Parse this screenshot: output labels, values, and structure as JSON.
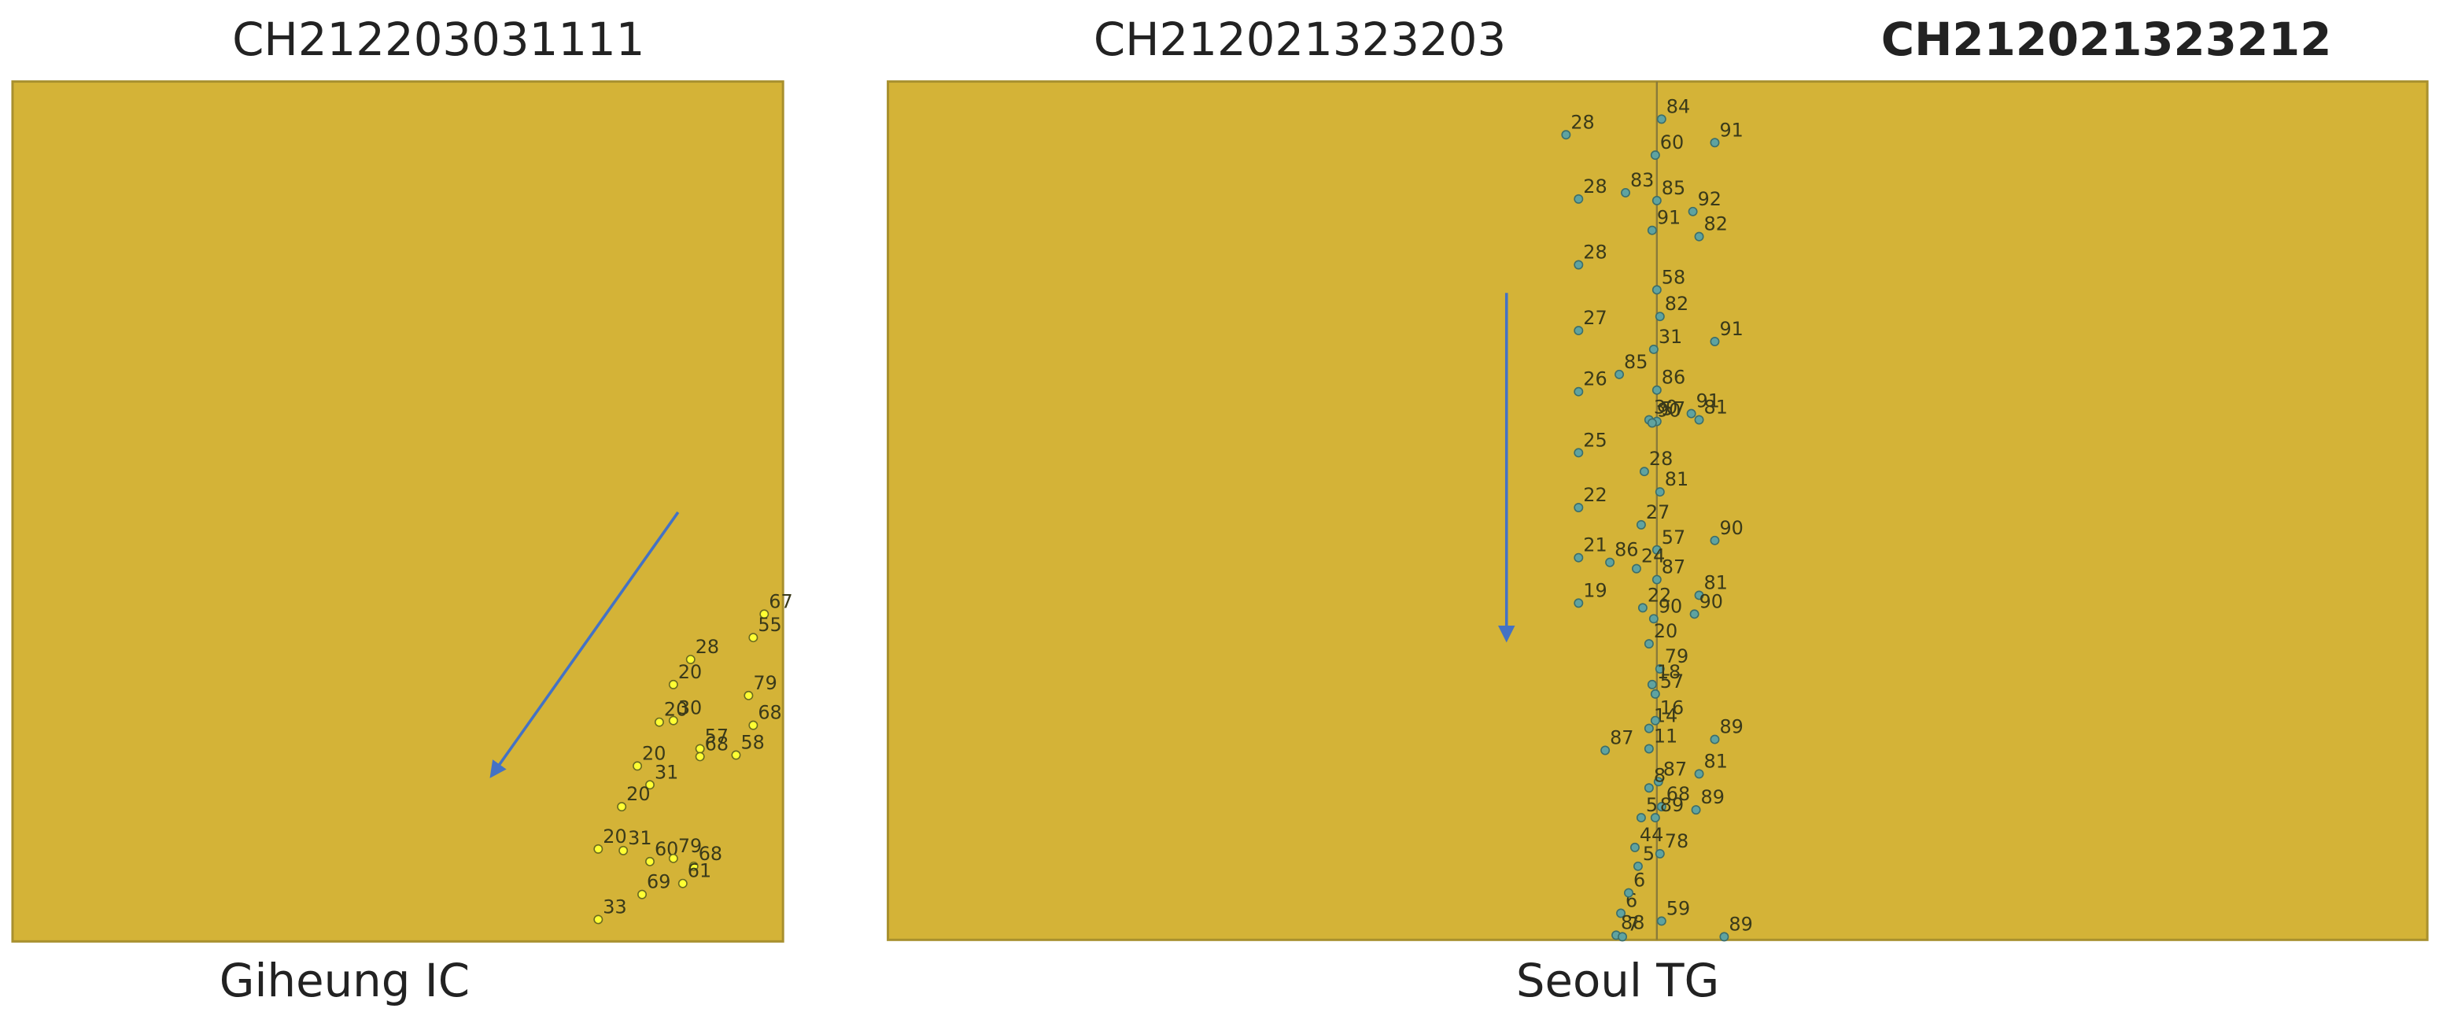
{
  "titles": [
    "CH212203031111",
    "CH212021323203",
    "CH212021323212"
  ],
  "panels": [
    {
      "caption": "Giheung IC",
      "points": [
        67,
        55,
        28,
        20,
        79,
        68,
        20,
        30,
        57,
        58,
        20,
        68,
        31,
        20,
        20,
        31,
        60,
        79,
        68,
        69,
        61,
        33
      ]
    },
    {
      "caption": "Seoul TG",
      "points": [
        28,
        84,
        91,
        60,
        28,
        83,
        85,
        92,
        91,
        82,
        28,
        58,
        82,
        27,
        31,
        91,
        85,
        26,
        86,
        30,
        57,
        91,
        90,
        81,
        25,
        28,
        81,
        22,
        27,
        90,
        57,
        21,
        86,
        24,
        87,
        81,
        19,
        22,
        90,
        90,
        20,
        79,
        18,
        57,
        14,
        16,
        89,
        87,
        11,
        87,
        81,
        8,
        68,
        5,
        89,
        89,
        44,
        78,
        5,
        6,
        6,
        59,
        89,
        88,
        7
      ]
    }
  ]
}
